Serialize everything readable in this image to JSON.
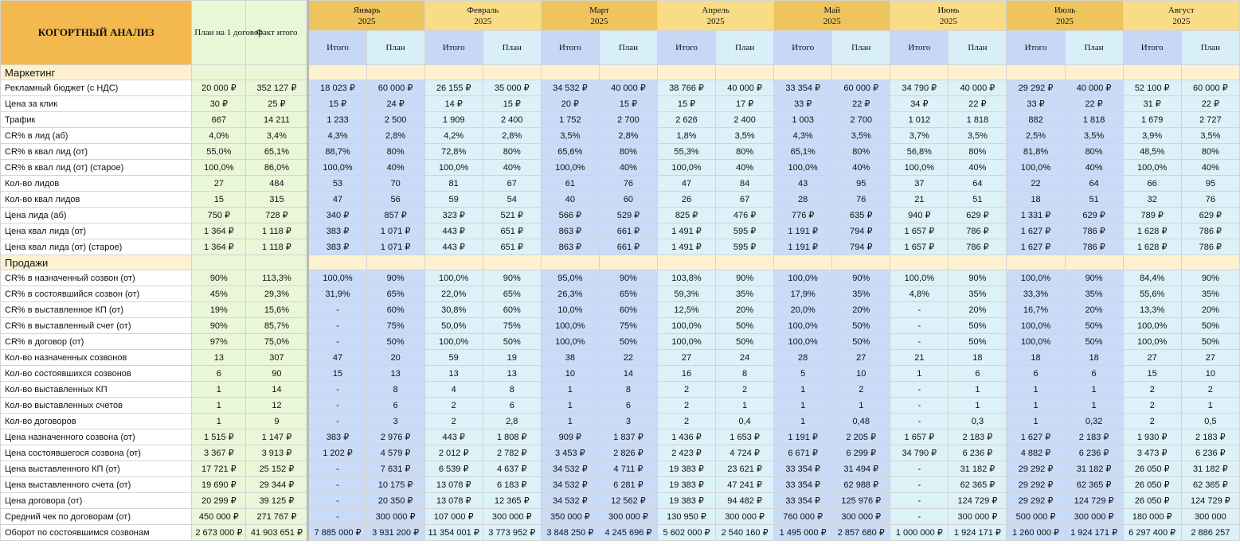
{
  "title": "КОГОРТНЫЙ АНАЛИЗ",
  "plan_header": "План на 1 договор",
  "fact_header": "Факт итого",
  "months": [
    {
      "name": "Январь",
      "year": "2025",
      "total": "Итого",
      "plan": "План"
    },
    {
      "name": "Февраль",
      "year": "2025",
      "total": "Итого",
      "plan": "План"
    },
    {
      "name": "Март",
      "year": "2025",
      "total": "Итого",
      "plan": "План"
    },
    {
      "name": "Апрель",
      "year": "2025",
      "total": "Итого",
      "plan": "План"
    },
    {
      "name": "Май",
      "year": "2025",
      "total": "Итого",
      "plan": "План"
    },
    {
      "name": "Июнь",
      "year": "2025",
      "total": "Итого",
      "plan": "План"
    },
    {
      "name": "Июль",
      "year": "2025",
      "total": "Итого",
      "plan": "План"
    },
    {
      "name": "Август",
      "year": "2025",
      "total": "Итого",
      "plan": "План"
    }
  ],
  "sections": [
    {
      "name": "Маркетинг",
      "rows": [
        {
          "label": "Рекламный бюджет (с НДС)",
          "cells": [
            "20 000 ₽",
            "352 127 ₽",
            "18 023 ₽",
            "60 000 ₽",
            "26 155 ₽",
            "35 000 ₽",
            "34 532 ₽",
            "40 000 ₽",
            "38 766 ₽",
            "40 000 ₽",
            "33 354 ₽",
            "60 000 ₽",
            "34 790 ₽",
            "40 000 ₽",
            "29 292 ₽",
            "40 000 ₽",
            "52 100 ₽",
            "60 000 ₽"
          ]
        },
        {
          "label": "Цена за клик",
          "cells": [
            "30 ₽",
            "25 ₽",
            "15 ₽",
            "24 ₽",
            "14 ₽",
            "15 ₽",
            "20 ₽",
            "15 ₽",
            "15 ₽",
            "17 ₽",
            "33 ₽",
            "22 ₽",
            "34 ₽",
            "22 ₽",
            "33 ₽",
            "22 ₽",
            "31 ₽",
            "22 ₽"
          ]
        },
        {
          "label": "Трафик",
          "cells": [
            "667",
            "14 211",
            "1 233",
            "2 500",
            "1 909",
            "2 400",
            "1 752",
            "2 700",
            "2 626",
            "2 400",
            "1 003",
            "2 700",
            "1 012",
            "1 818",
            "882",
            "1 818",
            "1 679",
            "2 727"
          ]
        },
        {
          "label": "CR% в лид (аб)",
          "cells": [
            "4,0%",
            "3,4%",
            "4,3%",
            "2,8%",
            "4,2%",
            "2,8%",
            "3,5%",
            "2,8%",
            "1,8%",
            "3,5%",
            "4,3%",
            "3,5%",
            "3,7%",
            "3,5%",
            "2,5%",
            "3,5%",
            "3,9%",
            "3,5%"
          ]
        },
        {
          "label": "CR% в квал лид (от)",
          "cells": [
            "55,0%",
            "65,1%",
            "88,7%",
            "80%",
            "72,8%",
            "80%",
            "65,6%",
            "80%",
            "55,3%",
            "80%",
            "65,1%",
            "80%",
            "56,8%",
            "80%",
            "81,8%",
            "80%",
            "48,5%",
            "80%"
          ]
        },
        {
          "label": "CR% в квал лид (от) (старое)",
          "cells": [
            "100,0%",
            "86,0%",
            "100,0%",
            "40%",
            "100,0%",
            "40%",
            "100,0%",
            "40%",
            "100,0%",
            "40%",
            "100,0%",
            "40%",
            "100,0%",
            "40%",
            "100,0%",
            "40%",
            "100,0%",
            "40%"
          ]
        },
        {
          "label": "Кол-во лидов",
          "cells": [
            "27",
            "484",
            "53",
            "70",
            "81",
            "67",
            "61",
            "76",
            "47",
            "84",
            "43",
            "95",
            "37",
            "64",
            "22",
            "64",
            "66",
            "95"
          ]
        },
        {
          "label": "Кол-во квал лидов",
          "cells": [
            "15",
            "315",
            "47",
            "56",
            "59",
            "54",
            "40",
            "60",
            "26",
            "67",
            "28",
            "76",
            "21",
            "51",
            "18",
            "51",
            "32",
            "76"
          ]
        },
        {
          "label": "Цена лида (аб)",
          "cells": [
            "750 ₽",
            "728 ₽",
            "340 ₽",
            "857 ₽",
            "323 ₽",
            "521 ₽",
            "566 ₽",
            "529 ₽",
            "825 ₽",
            "476 ₽",
            "776 ₽",
            "635 ₽",
            "940 ₽",
            "629 ₽",
            "1 331 ₽",
            "629 ₽",
            "789 ₽",
            "629 ₽"
          ]
        },
        {
          "label": "Цена квал лида (от)",
          "cells": [
            "1 364 ₽",
            "1 118 ₽",
            "383 ₽",
            "1 071 ₽",
            "443 ₽",
            "651 ₽",
            "863 ₽",
            "661 ₽",
            "1 491 ₽",
            "595 ₽",
            "1 191 ₽",
            "794 ₽",
            "1 657 ₽",
            "786 ₽",
            "1 627 ₽",
            "786 ₽",
            "1 628 ₽",
            "786 ₽"
          ]
        },
        {
          "label": "Цена квал лида (от) (старое)",
          "cells": [
            "1 364 ₽",
            "1 118 ₽",
            "383 ₽",
            "1 071 ₽",
            "443 ₽",
            "651 ₽",
            "863 ₽",
            "661 ₽",
            "1 491 ₽",
            "595 ₽",
            "1 191 ₽",
            "794 ₽",
            "1 657 ₽",
            "786 ₽",
            "1 627 ₽",
            "786 ₽",
            "1 628 ₽",
            "786 ₽"
          ]
        }
      ]
    },
    {
      "name": "Продажи",
      "rows": [
        {
          "label": "CR% в назначенный созвон (от)",
          "cells": [
            "90%",
            "113,3%",
            "100,0%",
            "90%",
            "100,0%",
            "90%",
            "95,0%",
            "90%",
            "103,8%",
            "90%",
            "100,0%",
            "90%",
            "100,0%",
            "90%",
            "100,0%",
            "90%",
            "84,4%",
            "90%"
          ]
        },
        {
          "label": "CR% в состоявшийся созвон (от)",
          "cells": [
            "45%",
            "29,3%",
            "31,9%",
            "65%",
            "22,0%",
            "65%",
            "26,3%",
            "65%",
            "59,3%",
            "35%",
            "17,9%",
            "35%",
            "4,8%",
            "35%",
            "33,3%",
            "35%",
            "55,6%",
            "35%"
          ]
        },
        {
          "label": "CR% в выставленное КП (от)",
          "cells": [
            "19%",
            "15,6%",
            "-",
            "60%",
            "30,8%",
            "60%",
            "10,0%",
            "60%",
            "12,5%",
            "20%",
            "20,0%",
            "20%",
            "-",
            "20%",
            "16,7%",
            "20%",
            "13,3%",
            "20%"
          ]
        },
        {
          "label": "CR% в выставленный счет (от)",
          "cells": [
            "90%",
            "85,7%",
            "-",
            "75%",
            "50,0%",
            "75%",
            "100,0%",
            "75%",
            "100,0%",
            "50%",
            "100,0%",
            "50%",
            "-",
            "50%",
            "100,0%",
            "50%",
            "100,0%",
            "50%"
          ]
        },
        {
          "label": "CR% в договор (от)",
          "cells": [
            "97%",
            "75,0%",
            "-",
            "50%",
            "100,0%",
            "50%",
            "100,0%",
            "50%",
            "100,0%",
            "50%",
            "100,0%",
            "50%",
            "-",
            "50%",
            "100,0%",
            "50%",
            "100,0%",
            "50%"
          ]
        },
        {
          "label": "Кол-во назначенных созвонов",
          "cells": [
            "13",
            "307",
            "47",
            "20",
            "59",
            "19",
            "38",
            "22",
            "27",
            "24",
            "28",
            "27",
            "21",
            "18",
            "18",
            "18",
            "27",
            "27"
          ]
        },
        {
          "label": "Кол-во  состоявшихся созвонов",
          "cells": [
            "6",
            "90",
            "15",
            "13",
            "13",
            "13",
            "10",
            "14",
            "16",
            "8",
            "5",
            "10",
            "1",
            "6",
            "6",
            "6",
            "15",
            "10"
          ]
        },
        {
          "label": "Кол-во выставленных КП",
          "cells": [
            "1",
            "14",
            "-",
            "8",
            "4",
            "8",
            "1",
            "8",
            "2",
            "2",
            "1",
            "2",
            "-",
            "1",
            "1",
            "1",
            "2",
            "2"
          ]
        },
        {
          "label": "Кол-во выставленных счетов",
          "cells": [
            "1",
            "12",
            "-",
            "6",
            "2",
            "6",
            "1",
            "6",
            "2",
            "1",
            "1",
            "1",
            "-",
            "1",
            "1",
            "1",
            "2",
            "1"
          ]
        },
        {
          "label": "Кол-во договоров",
          "cells": [
            "1",
            "9",
            "-",
            "3",
            "2",
            "2,8",
            "1",
            "3",
            "2",
            "0,4",
            "1",
            "0,48",
            "-",
            "0,3",
            "1",
            "0,32",
            "2",
            "0,5"
          ]
        },
        {
          "label": "Цена назначенного созвона (от)",
          "cells": [
            "1 515 ₽",
            "1 147 ₽",
            "383 ₽",
            "2 976 ₽",
            "443 ₽",
            "1 808 ₽",
            "909 ₽",
            "1 837 ₽",
            "1 436 ₽",
            "1 653 ₽",
            "1 191 ₽",
            "2 205 ₽",
            "1 657 ₽",
            "2 183 ₽",
            "1 627 ₽",
            "2 183 ₽",
            "1 930 ₽",
            "2 183 ₽"
          ]
        },
        {
          "label": "Цена состоявшегося созвона (от)",
          "cells": [
            "3 367 ₽",
            "3 913 ₽",
            "1 202 ₽",
            "4 579 ₽",
            "2 012 ₽",
            "2 782 ₽",
            "3 453 ₽",
            "2 826 ₽",
            "2 423 ₽",
            "4 724 ₽",
            "6 671 ₽",
            "6 299 ₽",
            "34 790 ₽",
            "6 236 ₽",
            "4 882 ₽",
            "6 236 ₽",
            "3 473 ₽",
            "6 236 ₽"
          ]
        },
        {
          "label": "Цена выставленного КП (от)",
          "cells": [
            "17 721 ₽",
            "25 152 ₽",
            "-",
            "7 631 ₽",
            "6 539 ₽",
            "4 637 ₽",
            "34 532 ₽",
            "4 711 ₽",
            "19 383 ₽",
            "23 621 ₽",
            "33 354 ₽",
            "31 494 ₽",
            "-",
            "31 182 ₽",
            "29 292 ₽",
            "31 182 ₽",
            "26 050 ₽",
            "31 182 ₽"
          ]
        },
        {
          "label": "Цена выставленного счета (от)",
          "cells": [
            "19 690 ₽",
            "29 344 ₽",
            "-",
            "10 175 ₽",
            "13 078 ₽",
            "6 183 ₽",
            "34 532 ₽",
            "6 281 ₽",
            "19 383 ₽",
            "47 241 ₽",
            "33 354 ₽",
            "62 988 ₽",
            "-",
            "62 365 ₽",
            "29 292 ₽",
            "62 365 ₽",
            "26 050 ₽",
            "62 365 ₽"
          ]
        },
        {
          "label": "Цена договора (от)",
          "cells": [
            "20 299 ₽",
            "39 125 ₽",
            "-",
            "20 350 ₽",
            "13 078 ₽",
            "12 365 ₽",
            "34 532 ₽",
            "12 562 ₽",
            "19 383 ₽",
            "94 482 ₽",
            "33 354 ₽",
            "125 976 ₽",
            "-",
            "124 729 ₽",
            "29 292 ₽",
            "124 729 ₽",
            "26 050 ₽",
            "124 729 ₽"
          ]
        },
        {
          "label": "Средний чек по договорам (от)",
          "cells": [
            "450 000 ₽",
            "271 767 ₽",
            "-",
            "300 000 ₽",
            "107 000 ₽",
            "300 000 ₽",
            "350 000 ₽",
            "300 000 ₽",
            "130 950 ₽",
            "300 000 ₽",
            "760 000 ₽",
            "300 000 ₽",
            "-",
            "300 000 ₽",
            "500 000 ₽",
            "300 000 ₽",
            "180 000 ₽",
            "300 000"
          ]
        },
        {
          "label": "Оборот по состоявшимся созвонам",
          "cells": [
            "2 673 000 ₽",
            "41 903 651 ₽",
            "7 885 000 ₽",
            "3 931 200 ₽",
            "11 354 001 ₽",
            "3 773 952 ₽",
            "3 848 250 ₽",
            "4 245 696 ₽",
            "5 602 000 ₽",
            "2 540 160 ₽",
            "1 495 000 ₽",
            "2 857 680 ₽",
            "1 000 000 ₽",
            "1 924 171 ₽",
            "1 260 000 ₽",
            "1 924 171 ₽",
            "6 297 400 ₽",
            "2 886 257"
          ]
        }
      ]
    }
  ]
}
